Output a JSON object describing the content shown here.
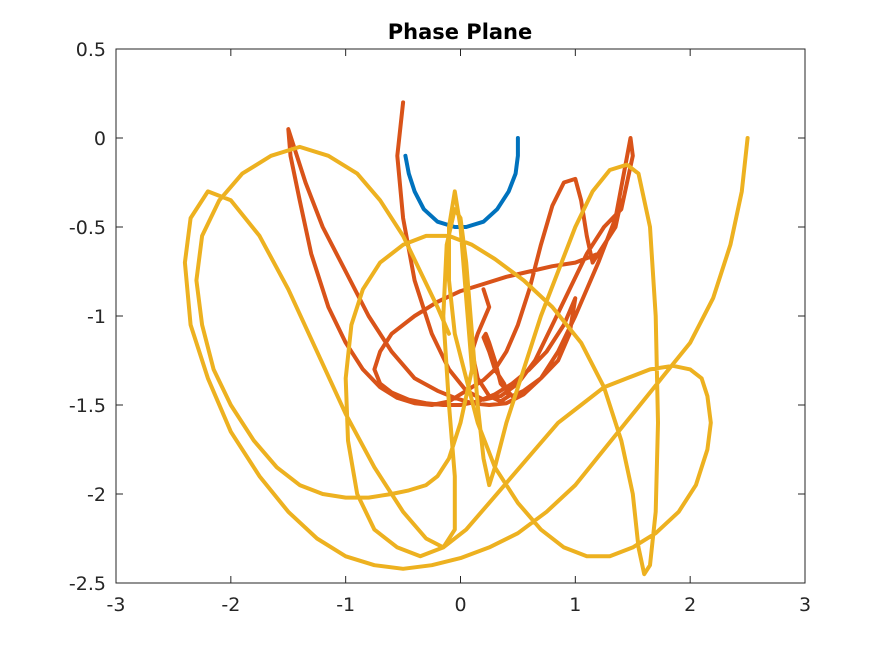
{
  "chart_data": {
    "type": "line",
    "title": "Phase Plane",
    "xlabel": "",
    "ylabel": "",
    "xlim": [
      -3,
      3
    ],
    "ylim": [
      -2.5,
      0.5
    ],
    "xticks": [
      "-3",
      "-2",
      "-1",
      "0",
      "1",
      "2",
      "3"
    ],
    "yticks": [
      "0.5",
      "0",
      "-0.5",
      "-1",
      "-1.5",
      "-2",
      "-2.5"
    ],
    "grid": false,
    "legend": false,
    "series": [
      {
        "color": "#0072BD",
        "x": [
          -0.48,
          -0.45,
          -0.4,
          -0.32,
          -0.2,
          -0.05,
          0.05,
          0.2,
          0.32,
          0.42,
          0.48,
          0.5,
          0.5
        ],
        "y": [
          -0.1,
          -0.2,
          -0.3,
          -0.4,
          -0.47,
          -0.5,
          -0.5,
          -0.47,
          -0.4,
          -0.3,
          -0.2,
          -0.1,
          0.0
        ]
      },
      {
        "color": "#D95319",
        "x": [
          -0.5,
          -0.55,
          -0.5,
          -0.4,
          -0.25,
          -0.1,
          0.05,
          0.2,
          0.35,
          0.5,
          0.65,
          0.8,
          0.95,
          1.1,
          1.25,
          1.4,
          1.5,
          1.48,
          1.35,
          1.2,
          1.0,
          0.85,
          0.7,
          0.55,
          0.4,
          0.25,
          0.1,
          -0.05,
          -0.2,
          -0.4,
          -0.6,
          -0.8,
          -1.0,
          -1.2,
          -1.35,
          -1.45,
          -1.5,
          -1.48,
          -1.4,
          -1.3,
          -1.15,
          -1.0,
          -0.85,
          -0.7,
          -0.55,
          -0.4,
          -0.25,
          -0.1,
          0.0,
          0.1,
          0.2,
          0.3,
          0.4,
          0.5,
          0.6,
          0.7,
          0.8,
          0.9,
          1.0,
          1.05,
          1.1,
          1.15,
          1.2,
          1.3,
          1.38,
          1.4,
          1.35,
          1.2,
          1.0,
          0.8,
          0.6,
          0.4,
          0.2,
          0.0,
          -0.2,
          -0.4,
          -0.6,
          -0.7,
          -0.75,
          -0.7,
          -0.6,
          -0.45,
          -0.3,
          -0.15,
          0.0,
          0.15,
          0.3,
          0.45,
          0.6,
          0.75,
          0.9,
          1.0,
          0.95,
          0.85,
          0.7,
          0.55,
          0.45,
          0.35,
          0.3,
          0.25,
          0.22,
          0.2,
          0.25,
          0.3,
          0.38,
          0.42,
          0.35,
          0.25,
          0.15,
          0.1,
          0.15,
          0.25,
          0.2
        ],
        "y": [
          0.2,
          -0.1,
          -0.45,
          -0.8,
          -1.1,
          -1.3,
          -1.42,
          -1.47,
          -1.45,
          -1.38,
          -1.25,
          -1.05,
          -0.85,
          -0.65,
          -0.5,
          -0.4,
          -0.1,
          0.0,
          -0.45,
          -0.7,
          -1.0,
          -1.2,
          -1.35,
          -1.44,
          -1.49,
          -1.5,
          -1.49,
          -1.46,
          -1.42,
          -1.35,
          -1.2,
          -1.0,
          -0.75,
          -0.5,
          -0.25,
          -0.05,
          0.05,
          -0.1,
          -0.35,
          -0.65,
          -0.95,
          -1.15,
          -1.3,
          -1.4,
          -1.46,
          -1.49,
          -1.5,
          -1.48,
          -1.44,
          -1.4,
          -1.36,
          -1.3,
          -1.2,
          -1.05,
          -0.85,
          -0.6,
          -0.38,
          -0.25,
          -0.23,
          -0.35,
          -0.55,
          -0.7,
          -0.65,
          -0.55,
          -0.4,
          -0.35,
          -0.5,
          -0.65,
          -0.7,
          -0.72,
          -0.75,
          -0.78,
          -0.82,
          -0.86,
          -0.92,
          -1.0,
          -1.1,
          -1.2,
          -1.3,
          -1.38,
          -1.43,
          -1.47,
          -1.49,
          -1.5,
          -1.5,
          -1.48,
          -1.44,
          -1.38,
          -1.3,
          -1.2,
          -1.05,
          -0.9,
          -1.1,
          -1.25,
          -1.35,
          -1.42,
          -1.45,
          -1.38,
          -1.25,
          -1.15,
          -1.1,
          -1.12,
          -1.2,
          -1.3,
          -1.38,
          -1.45,
          -1.48,
          -1.45,
          -1.35,
          -1.2,
          -1.1,
          -0.95,
          -0.85
        ]
      },
      {
        "color": "#EDB120",
        "x": [
          2.5,
          2.45,
          2.35,
          2.2,
          2.0,
          1.75,
          1.5,
          1.25,
          1.0,
          0.75,
          0.5,
          0.25,
          0.0,
          -0.25,
          -0.5,
          -0.75,
          -1.0,
          -1.25,
          -1.5,
          -1.75,
          -2.0,
          -2.2,
          -2.35,
          -2.4,
          -2.35,
          -2.2,
          -2.0,
          -1.75,
          -1.5,
          -1.25,
          -1.0,
          -0.75,
          -0.5,
          -0.3,
          -0.15,
          -0.05,
          -0.05,
          -0.1,
          -0.15,
          -0.12,
          -0.05,
          0.0,
          0.05,
          0.1,
          0.15,
          0.2,
          0.25,
          0.3,
          0.4,
          0.55,
          0.7,
          0.85,
          1.0,
          1.15,
          1.3,
          1.45,
          1.55,
          1.65,
          1.7,
          1.72,
          1.7,
          1.65,
          1.6,
          1.55,
          1.5,
          1.4,
          1.25,
          1.05,
          0.8,
          0.55,
          0.3,
          0.1,
          -0.1,
          -0.3,
          -0.5,
          -0.7,
          -0.85,
          -0.95,
          -1.0,
          -0.98,
          -0.9,
          -0.75,
          -0.55,
          -0.35,
          -0.15,
          0.05,
          0.25,
          0.45,
          0.65,
          0.85,
          1.05,
          1.25,
          1.45,
          1.65,
          1.85,
          2.0,
          2.1,
          2.15,
          2.18,
          2.15,
          2.05,
          1.9,
          1.7,
          1.5,
          1.3,
          1.1,
          0.9,
          0.7,
          0.5,
          0.3,
          0.15,
          0.05,
          -0.05,
          -0.1,
          -0.1,
          -0.05,
          0.0,
          0.05,
          0.1,
          0.0,
          -0.1,
          -0.2,
          -0.3,
          -0.45,
          -0.6,
          -0.8,
          -1.0,
          -1.2,
          -1.4,
          -1.6,
          -1.8,
          -2.0,
          -2.15,
          -2.25,
          -2.3,
          -2.25,
          -2.1,
          -1.9,
          -1.65,
          -1.4,
          -1.15,
          -0.9,
          -0.7,
          -0.5,
          -0.35,
          -0.2,
          -0.1
        ],
        "y": [
          0.0,
          -0.3,
          -0.6,
          -0.9,
          -1.15,
          -1.35,
          -1.55,
          -1.75,
          -1.95,
          -2.1,
          -2.22,
          -2.3,
          -2.36,
          -2.4,
          -2.42,
          -2.4,
          -2.35,
          -2.25,
          -2.1,
          -1.9,
          -1.65,
          -1.35,
          -1.05,
          -0.7,
          -0.45,
          -0.3,
          -0.35,
          -0.55,
          -0.85,
          -1.2,
          -1.55,
          -1.85,
          -2.1,
          -2.25,
          -2.3,
          -2.2,
          -1.9,
          -1.5,
          -1.0,
          -0.6,
          -0.4,
          -0.45,
          -0.7,
          -1.1,
          -1.5,
          -1.8,
          -1.95,
          -1.85,
          -1.6,
          -1.3,
          -1.0,
          -0.75,
          -0.5,
          -0.3,
          -0.18,
          -0.15,
          -0.2,
          -0.5,
          -1.0,
          -1.6,
          -2.1,
          -2.4,
          -2.45,
          -2.3,
          -2.0,
          -1.7,
          -1.4,
          -1.15,
          -0.95,
          -0.8,
          -0.68,
          -0.6,
          -0.55,
          -0.55,
          -0.6,
          -0.7,
          -0.85,
          -1.05,
          -1.35,
          -1.7,
          -2.0,
          -2.2,
          -2.3,
          -2.35,
          -2.3,
          -2.2,
          -2.05,
          -1.9,
          -1.75,
          -1.6,
          -1.5,
          -1.4,
          -1.35,
          -1.3,
          -1.28,
          -1.3,
          -1.35,
          -1.45,
          -1.6,
          -1.75,
          -1.95,
          -2.1,
          -2.22,
          -2.3,
          -2.35,
          -2.35,
          -2.3,
          -2.2,
          -2.05,
          -1.85,
          -1.6,
          -1.35,
          -1.1,
          -0.8,
          -0.5,
          -0.3,
          -0.5,
          -0.9,
          -1.3,
          -1.6,
          -1.8,
          -1.9,
          -1.95,
          -1.98,
          -2.0,
          -2.02,
          -2.02,
          -2.0,
          -1.95,
          -1.85,
          -1.7,
          -1.5,
          -1.3,
          -1.05,
          -0.8,
          -0.55,
          -0.35,
          -0.2,
          -0.1,
          -0.05,
          -0.1,
          -0.2,
          -0.35,
          -0.55,
          -0.75,
          -0.95,
          -1.1
        ]
      }
    ]
  }
}
